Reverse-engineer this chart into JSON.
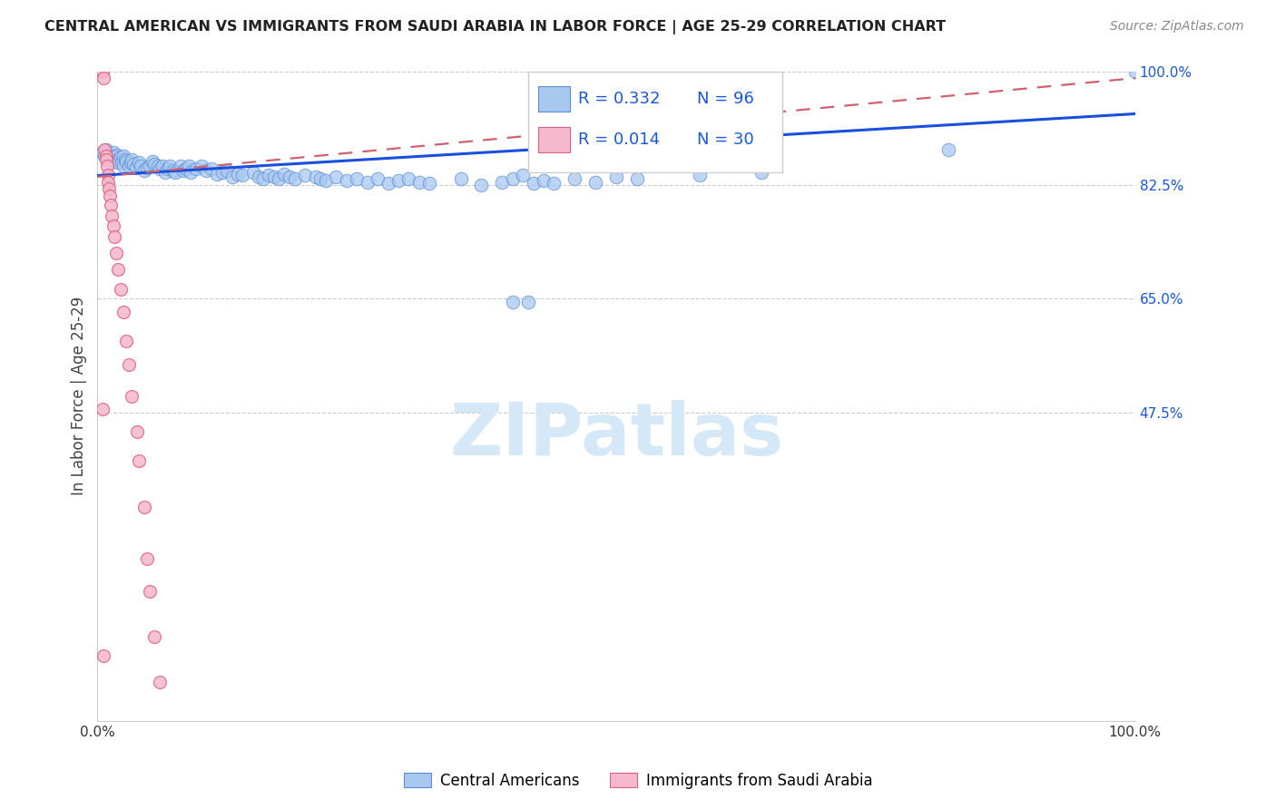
{
  "title": "CENTRAL AMERICAN VS IMMIGRANTS FROM SAUDI ARABIA IN LABOR FORCE | AGE 25-29 CORRELATION CHART",
  "source": "Source: ZipAtlas.com",
  "ylabel": "In Labor Force | Age 25-29",
  "legend_blue_r": "R = 0.332",
  "legend_blue_n": "N = 96",
  "legend_pink_r": "R = 0.014",
  "legend_pink_n": "N = 30",
  "legend_blue_label": "Central Americans",
  "legend_pink_label": "Immigrants from Saudi Arabia",
  "blue_color": "#a8c8f0",
  "blue_edge_color": "#5b8dd9",
  "blue_line_color": "#1a4fdb",
  "pink_color": "#f5b8cc",
  "pink_edge_color": "#e06080",
  "pink_line_color": "#d06070",
  "right_label_color": "#1a56db",
  "watermark_text": "ZIPatlas",
  "watermark_color": "#d5e8f8",
  "blue_x": [
    0.005,
    0.007,
    0.008,
    0.01,
    0.01,
    0.012,
    0.013,
    0.015,
    0.015,
    0.017,
    0.018,
    0.019,
    0.02,
    0.02,
    0.022,
    0.023,
    0.025,
    0.025,
    0.027,
    0.028,
    0.03,
    0.032,
    0.033,
    0.035,
    0.037,
    0.04,
    0.042,
    0.045,
    0.048,
    0.05,
    0.053,
    0.055,
    0.058,
    0.06,
    0.063,
    0.065,
    0.068,
    0.07,
    0.073,
    0.075,
    0.08,
    0.083,
    0.085,
    0.088,
    0.09,
    0.095,
    0.1,
    0.105,
    0.11,
    0.115,
    0.12,
    0.125,
    0.13,
    0.135,
    0.14,
    0.15,
    0.155,
    0.16,
    0.165,
    0.17,
    0.175,
    0.18,
    0.185,
    0.19,
    0.2,
    0.21,
    0.215,
    0.22,
    0.23,
    0.24,
    0.25,
    0.26,
    0.27,
    0.28,
    0.29,
    0.3,
    0.31,
    0.32,
    0.35,
    0.37,
    0.39,
    0.4,
    0.41,
    0.42,
    0.43,
    0.44,
    0.46,
    0.48,
    0.5,
    0.52,
    0.58,
    0.64,
    0.82,
    1.0,
    0.4,
    0.415
  ],
  "blue_y": [
    0.875,
    0.87,
    0.88,
    0.872,
    0.868,
    0.865,
    0.87,
    0.875,
    0.862,
    0.87,
    0.868,
    0.872,
    0.865,
    0.86,
    0.868,
    0.86,
    0.87,
    0.855,
    0.865,
    0.862,
    0.855,
    0.86,
    0.865,
    0.858,
    0.852,
    0.86,
    0.855,
    0.848,
    0.852,
    0.855,
    0.862,
    0.858,
    0.855,
    0.85,
    0.855,
    0.845,
    0.85,
    0.855,
    0.848,
    0.845,
    0.855,
    0.848,
    0.85,
    0.855,
    0.845,
    0.85,
    0.855,
    0.848,
    0.85,
    0.842,
    0.845,
    0.848,
    0.838,
    0.842,
    0.84,
    0.845,
    0.838,
    0.835,
    0.84,
    0.838,
    0.835,
    0.842,
    0.838,
    0.835,
    0.84,
    0.838,
    0.835,
    0.832,
    0.838,
    0.832,
    0.835,
    0.83,
    0.835,
    0.828,
    0.832,
    0.835,
    0.83,
    0.828,
    0.835,
    0.825,
    0.83,
    0.835,
    0.84,
    0.828,
    0.832,
    0.828,
    0.835,
    0.83,
    0.838,
    0.835,
    0.84,
    0.845,
    0.88,
    1.0,
    0.645,
    0.645
  ],
  "pink_x": [
    0.005,
    0.006,
    0.007,
    0.008,
    0.008,
    0.009,
    0.01,
    0.01,
    0.011,
    0.012,
    0.013,
    0.014,
    0.015,
    0.016,
    0.018,
    0.02,
    0.022,
    0.025,
    0.028,
    0.03,
    0.033,
    0.038,
    0.04,
    0.045,
    0.048,
    0.05,
    0.055,
    0.06,
    0.005,
    0.006
  ],
  "pink_y": [
    1.0,
    0.99,
    0.88,
    0.87,
    0.865,
    0.855,
    0.84,
    0.83,
    0.82,
    0.808,
    0.795,
    0.778,
    0.762,
    0.745,
    0.72,
    0.695,
    0.665,
    0.63,
    0.585,
    0.548,
    0.5,
    0.445,
    0.4,
    0.33,
    0.25,
    0.2,
    0.13,
    0.06,
    0.48,
    0.1
  ],
  "blue_line_x": [
    0.0,
    1.0
  ],
  "blue_line_y": [
    0.84,
    0.935
  ],
  "pink_line_x": [
    0.0,
    1.0
  ],
  "pink_line_y": [
    0.838,
    0.99
  ],
  "xlim": [
    0.0,
    1.0
  ],
  "ylim": [
    0.0,
    1.0
  ],
  "yticks": [
    0.475,
    0.65,
    0.825,
    1.0
  ],
  "ytick_labels": [
    "47.5%",
    "65.0%",
    "82.5%",
    "100.0%"
  ],
  "xticks": [
    0.0,
    1.0
  ],
  "xtick_labels": [
    "0.0%",
    "100.0%"
  ]
}
